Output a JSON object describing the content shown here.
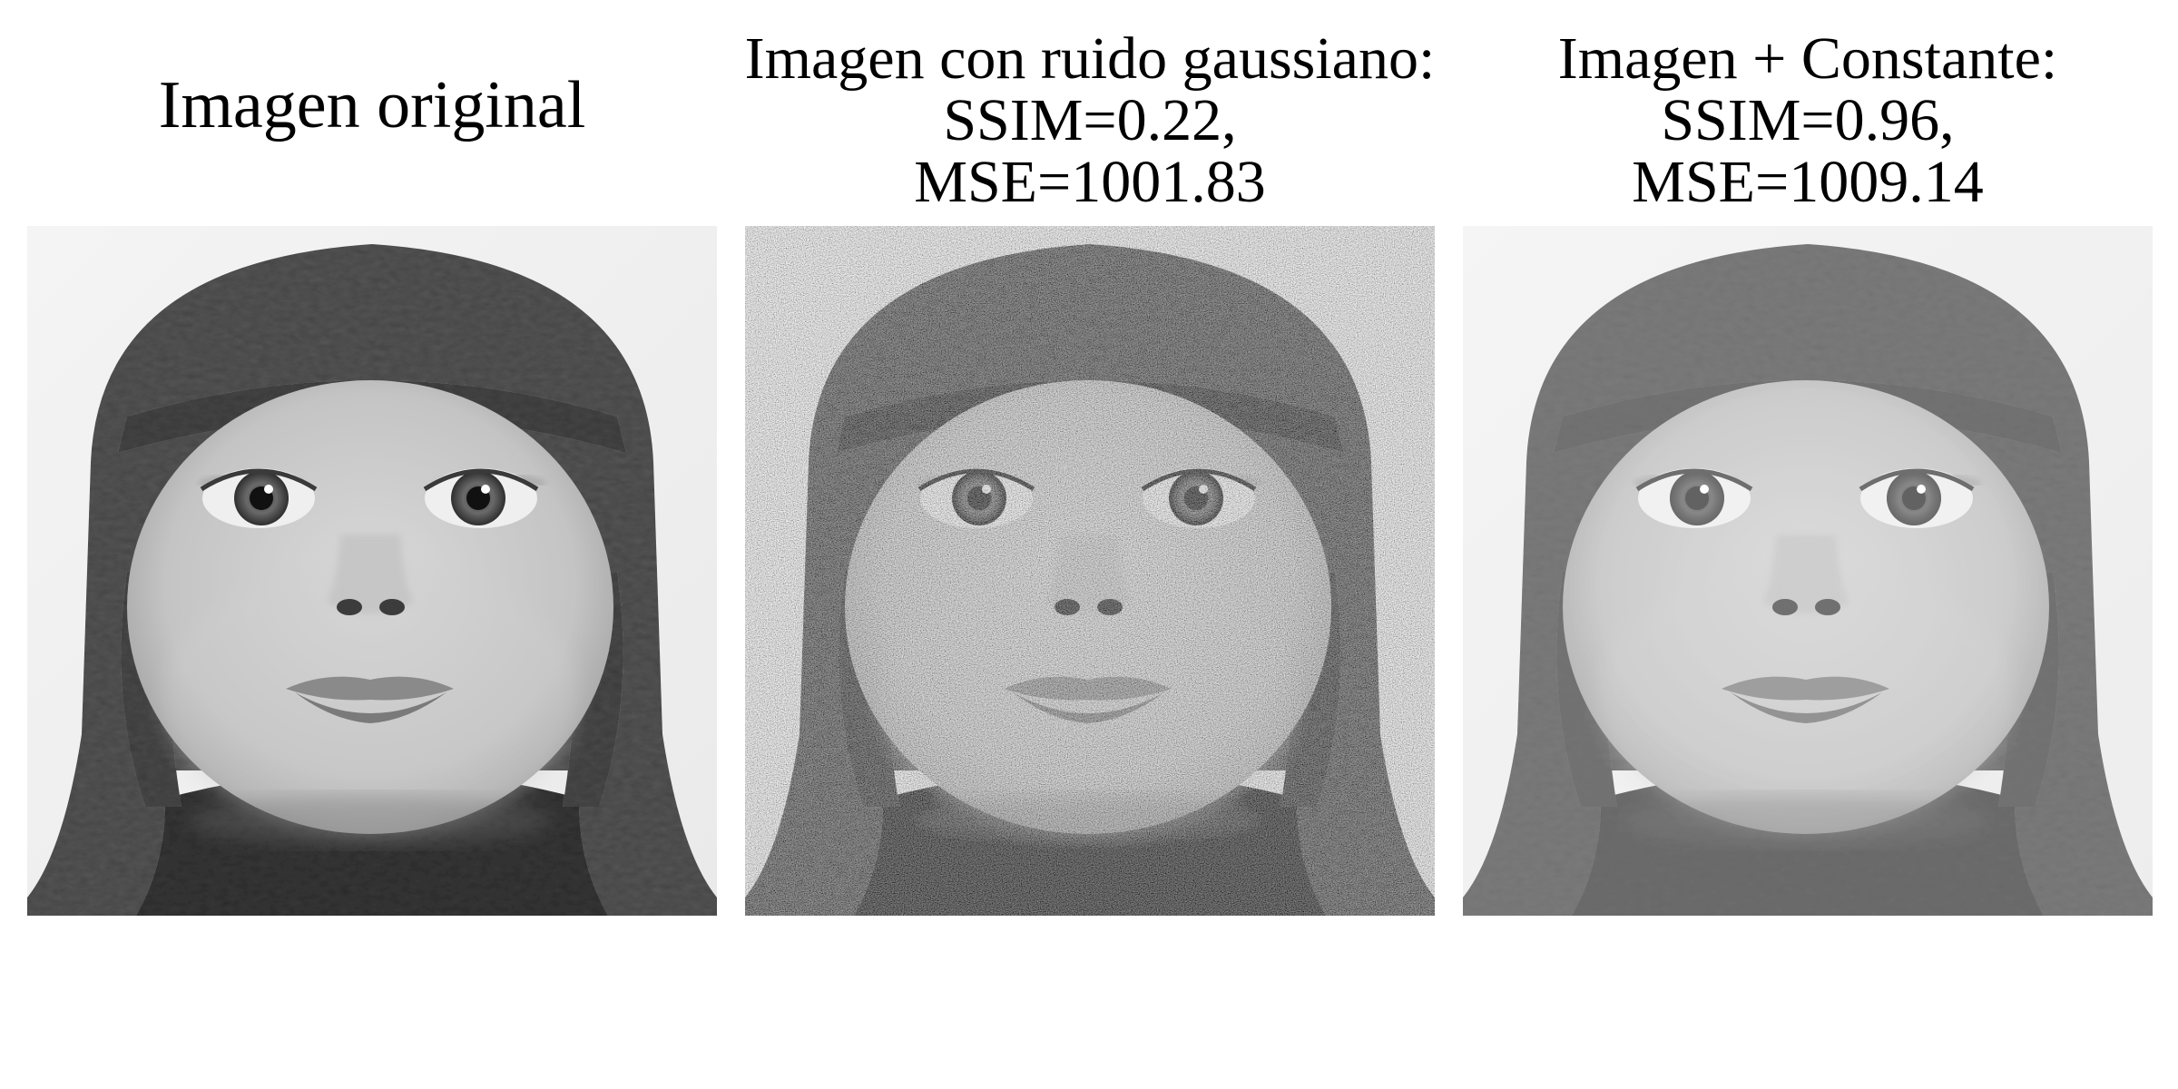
{
  "panels": [
    {
      "id": "original",
      "title_lines": [
        "Imagen original"
      ]
    },
    {
      "id": "noise",
      "title_lines": [
        "Imagen con ruido gaussiano:",
        "SSIM=0.22,",
        "MSE=1001.83"
      ],
      "ssim": 0.22,
      "mse": 1001.83
    },
    {
      "id": "constant",
      "title_lines": [
        "Imagen + Constante:",
        "SSIM=0.96,",
        "MSE=1009.14"
      ],
      "ssim": 0.96,
      "mse": 1009.14
    }
  ],
  "image_subject": "grayscale portrait of a baby wearing a knitted hat with ear flaps"
}
